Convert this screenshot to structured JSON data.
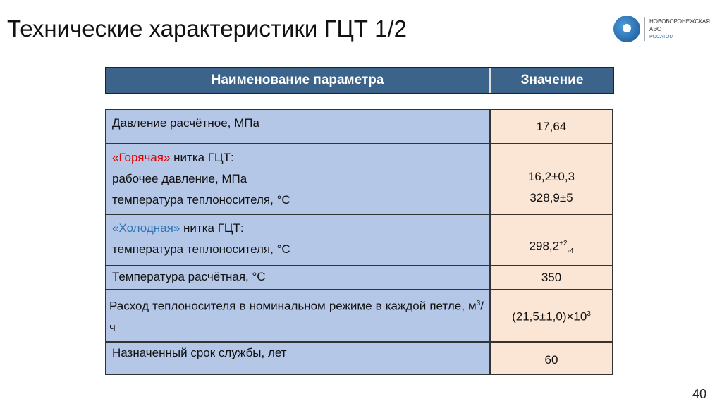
{
  "title": "Технические характеристики ГЦТ 1/2",
  "logo": {
    "line1": "НОВОВОРОНЕЖСКАЯ",
    "line2": "АЭС",
    "line3": "РОСАТОМ"
  },
  "header": {
    "param": "Наименование параметра",
    "value": "Значение"
  },
  "rows": [
    {
      "label": "Давление расчётное, МПа",
      "value": "17,64"
    },
    {
      "hot": "«Горячая»",
      "hot_rest": " нитка ГЦТ:",
      "l2": "рабочее давление, МПа",
      "l3": "температура теплоносителя, °С",
      "v1": "16,2±0,3",
      "v2": "328,9±5"
    },
    {
      "cold": "«Холодная»",
      "cold_rest": " нитка ГЦТ:",
      "l2": "температура теплоносителя, °С",
      "value": "298,2",
      "sup": "+2",
      "sub": "-4"
    },
    {
      "label": "Температура расчётная, °С",
      "value": "350"
    },
    {
      "label": "Расход теплоносителя в номинальном режиме в каждой петле, м",
      "label_sup": "3",
      "label_end": "/ч",
      "value": "(21,5±1,0)×10",
      "value_sup": "3"
    },
    {
      "label": "Назначенный срок службы, лет",
      "value": "60"
    }
  ],
  "page": "40"
}
